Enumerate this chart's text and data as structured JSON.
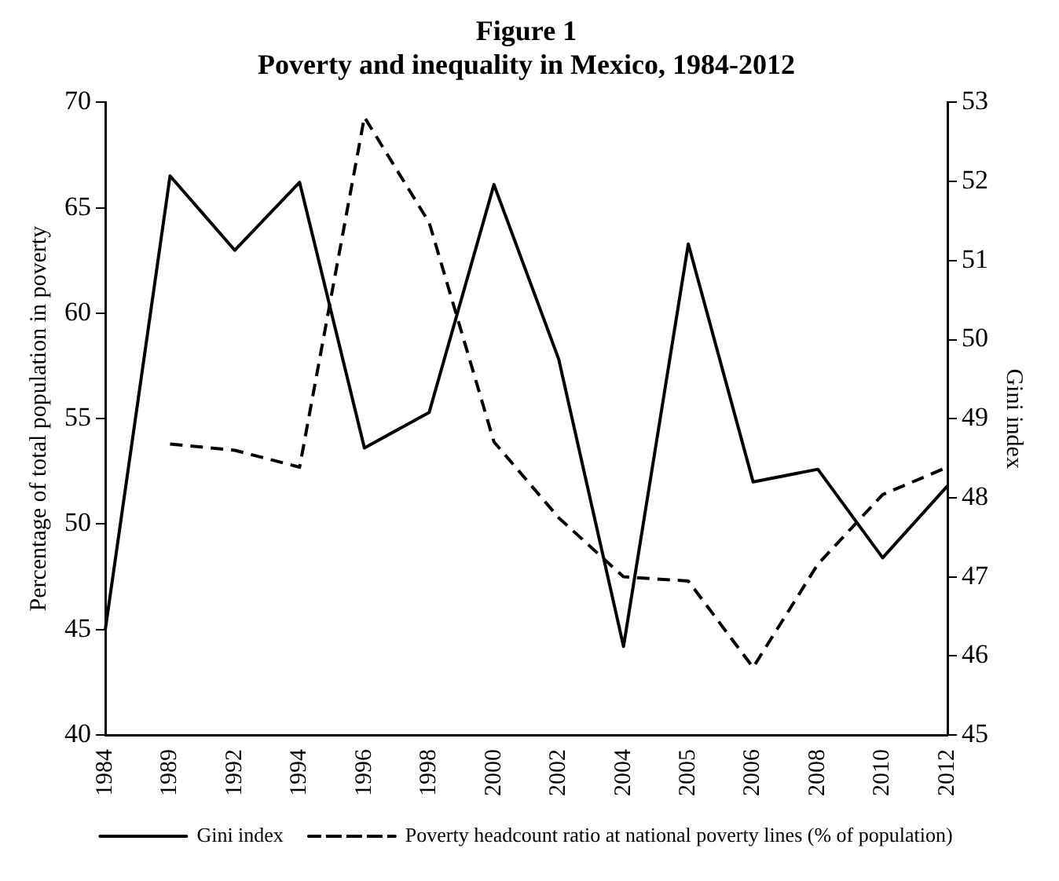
{
  "chart_data": {
    "type": "line",
    "title": "Figure 1",
    "subtitle": "Poverty and inequality in Mexico, 1984-2012",
    "ylabel": "Percentage of total population in poverty",
    "y2label": "Gini index",
    "categories": [
      "1984",
      "1989",
      "1992",
      "1994",
      "1996",
      "1998",
      "2000",
      "2002",
      "2004",
      "2005",
      "2006",
      "2008",
      "2010",
      "2012"
    ],
    "series": [
      {
        "name": "Gini index",
        "color": "#000000",
        "axis": "y2",
        "line_style": "solid",
        "values": [
          46.33,
          52.07,
          51.13,
          51.99,
          48.63,
          49.08,
          51.96,
          49.75,
          46.12,
          51.21,
          48.2,
          48.36,
          47.24,
          48.15
        ]
      },
      {
        "name": "Poverty headcount ratio at national poverty lines (% of population)",
        "color": "#000000",
        "axis": "y",
        "line_style": "dashed",
        "values": [
          null,
          53.8,
          53.5,
          52.7,
          69.3,
          64.3,
          53.9,
          50.3,
          47.5,
          47.3,
          43.2,
          48.1,
          51.4,
          52.7
        ]
      }
    ],
    "ylim": [
      40,
      70
    ],
    "yticks": [
      40,
      45,
      50,
      55,
      60,
      65,
      70
    ],
    "y2lim": [
      45,
      53
    ],
    "y2ticks": [
      45,
      46,
      47,
      48,
      49,
      50,
      51,
      52,
      53
    ],
    "grid": false,
    "legend": "bottom",
    "marker": "none"
  }
}
